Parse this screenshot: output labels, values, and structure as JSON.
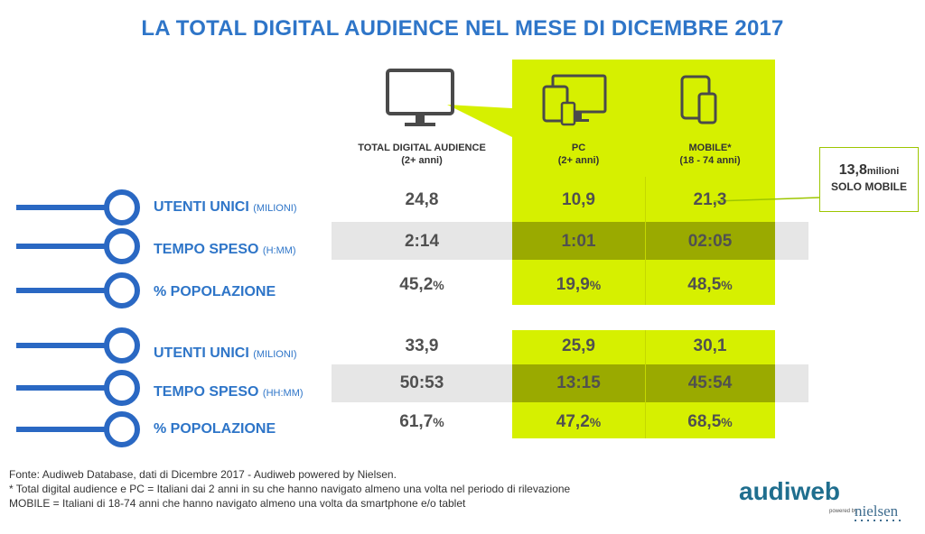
{
  "title": "LA TOTAL DIGITAL AUDIENCE NEL MESE DI DICEMBRE 2017",
  "columns": {
    "total": {
      "name": "TOTAL DIGITAL AUDIENCE",
      "sub": "(2+ anni)"
    },
    "pc": {
      "name": "PC",
      "sub": "(2+ anni)"
    },
    "mobile": {
      "name": "MOBILE*",
      "sub": "(18 - 74 anni)"
    }
  },
  "callout": {
    "value": "13,8",
    "unit": "milioni",
    "label": "SOLO MOBILE"
  },
  "section1": {
    "rows": [
      {
        "label": "UTENTI UNICI",
        "sub": "(MILIONI)",
        "total": "24,8",
        "pc": "10,9",
        "mobile": "21,3"
      },
      {
        "label": "TEMPO SPESO",
        "sub": "(H:MM)",
        "total": "2:14",
        "pc": "1:01",
        "mobile": "02:05"
      },
      {
        "label": "% POPOLAZIONE",
        "sub": "",
        "total": "45,2",
        "pc": "19,9",
        "mobile": "48,5"
      }
    ]
  },
  "section2": {
    "rows": [
      {
        "label": "UTENTI UNICI",
        "sub": "(MILIONI)",
        "total": "33,9",
        "pc": "25,9",
        "mobile": "30,1"
      },
      {
        "label": "TEMPO SPESO",
        "sub": "(HH:MM)",
        "total": "50:53",
        "pc": "13:15",
        "mobile": "45:54"
      },
      {
        "label": "% POPOLAZIONE",
        "sub": "",
        "total": "61,7",
        "pc": "47,2",
        "mobile": "68,5"
      }
    ]
  },
  "pct_symbol": "%",
  "footer": {
    "line1": "Fonte: Audiweb Database, dati di Dicembre 2017 - Audiweb powered by Nielsen.",
    "line2": "Total digital audience e PC = Italiani dai 2 anni in su che hanno navigato almeno una volta nel periodo di rilevazione",
    "line2_mark": "*",
    "line3": "MOBILE = Italiani di 18-74 anni che hanno navigato almeno una volta da smartphone e/o tablet"
  },
  "logo": {
    "brand": "audiweb",
    "powered": "powered by",
    "partner": "nielsen"
  },
  "colors": {
    "accent_blue": "#2e75c8",
    "lime": "#d6f000",
    "olive": "#9aaa00",
    "band_gray": "#e6e6e6"
  }
}
